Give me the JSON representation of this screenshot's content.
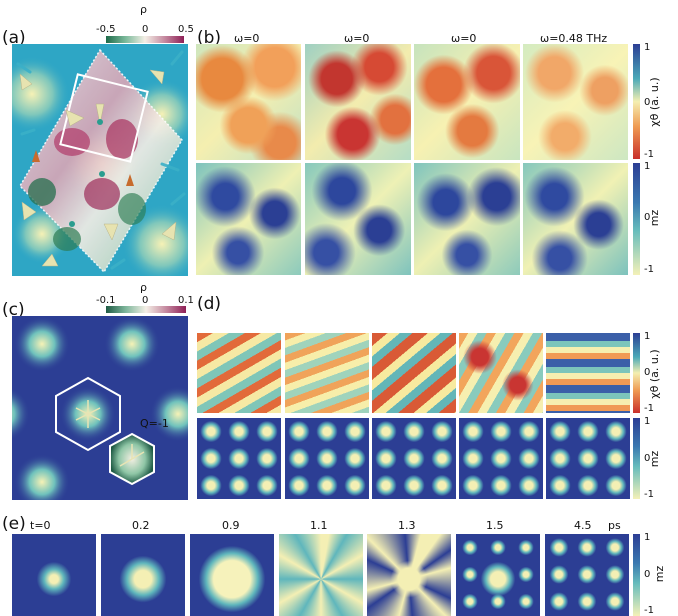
{
  "panels": {
    "a": {
      "label": "(a)",
      "cbar_title": "ρ",
      "cbar_ticks": [
        "-0.5",
        "0",
        "0.5"
      ]
    },
    "b": {
      "label": "(b)",
      "columns": [
        "ω=0",
        "ω=0",
        "ω=0",
        "ω=0.48 THz"
      ],
      "cbar_top_ticks": [
        "1",
        "0",
        "-1"
      ],
      "cbar_top_title": "χθ (a. u.)",
      "cbar_bottom_ticks": [
        "1",
        "0",
        "-1"
      ],
      "cbar_bottom_title": "mz"
    },
    "c": {
      "label": "(c)",
      "cbar_title": "ρ",
      "cbar_ticks": [
        "-0.1",
        "0",
        "0.1"
      ],
      "annotation": "Q=-1"
    },
    "d": {
      "label": "(d)",
      "cbar_top_ticks": [
        "1",
        "0",
        "-1"
      ],
      "cbar_top_title": "χθ (a. u.)",
      "cbar_bottom_ticks": [
        "1",
        "0",
        "-1"
      ],
      "cbar_bottom_title": "mz"
    },
    "e": {
      "label": "(e)",
      "times": [
        "t=0",
        "0.2",
        "0.9",
        "1.1",
        "1.3",
        "1.5",
        "4.5"
      ],
      "unit": "ps",
      "cbar_ticks": [
        "1",
        "0",
        "-1"
      ],
      "cbar_title": "mz"
    }
  },
  "colors": {
    "navy": "#2c3e94",
    "teal": "#49a9b8",
    "yellow": "#f7f3b0",
    "red": "#c9302c",
    "orange": "#ef9a52"
  }
}
